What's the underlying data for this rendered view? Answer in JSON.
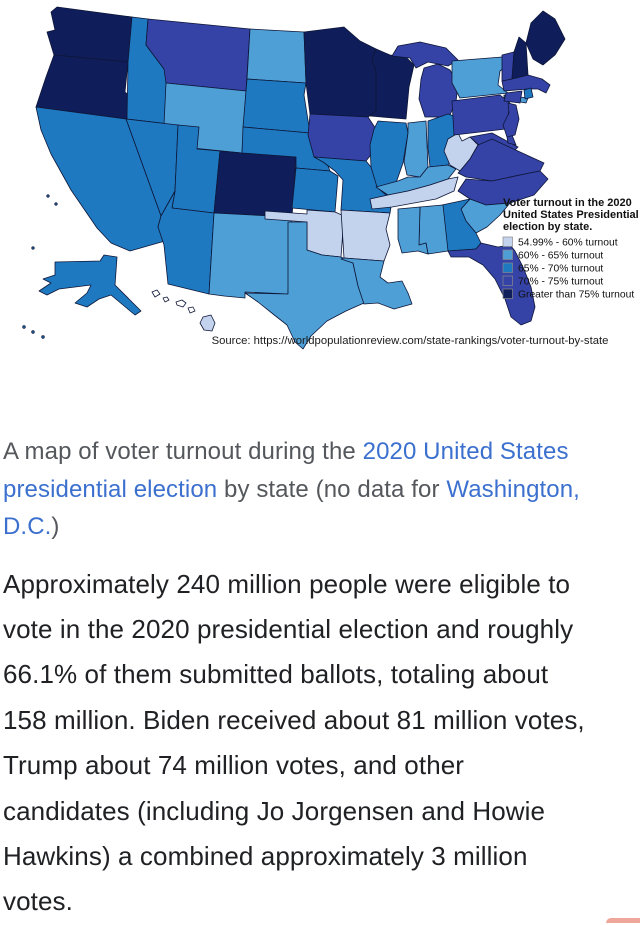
{
  "figure": {
    "legend": {
      "title_lines": [
        "Voter turnout in the 2020",
        "United States Presidential",
        "election by state."
      ],
      "item_labels": [
        "54.99% - 60% turnout",
        "60% - 65% turnout",
        "65% - 70% turnout",
        "70% - 75% turnout",
        "Greater than 75% turnout"
      ]
    },
    "source_line": "Source: https://worldpopulationreview.com/state-rankings/voter-turnout-by-state"
  },
  "chart_data": {
    "type": "choropleth",
    "title": "Voter turnout in the 2020 United States Presidential election by state.",
    "source": "https://worldpopulationreview.com/state-rankings/voter-turnout-by-state",
    "bands": [
      "54.99% - 60% turnout",
      "60% - 65% turnout",
      "65% - 70% turnout",
      "70% - 75% turnout",
      "Greater than 75% turnout"
    ],
    "band_colors": [
      "#c3d3ee",
      "#4d9fd6",
      "#1e79c0",
      "#3542a6",
      "#0f1e5a"
    ],
    "no_data": [
      "Washington, D.C."
    ],
    "state_bands": {
      "AL": 1,
      "AK": 2,
      "AZ": 2,
      "AR": 0,
      "CA": 2,
      "CO": 4,
      "CT": 3,
      "DE": 3,
      "FL": 3,
      "GA": 2,
      "HI": 0,
      "ID": 2,
      "IL": 2,
      "IN": 1,
      "IA": 3,
      "KS": 2,
      "KY": 1,
      "LA": 1,
      "ME": 4,
      "MD": 3,
      "MA": 3,
      "MI": 3,
      "MN": 4,
      "MS": 1,
      "MO": 2,
      "MT": 3,
      "NE": 2,
      "NV": 2,
      "NH": 4,
      "NJ": 3,
      "NM": 1,
      "NY": 1,
      "NC": 3,
      "ND": 1,
      "OH": 2,
      "OK": 0,
      "OR": 4,
      "PA": 3,
      "RI": 2,
      "SC": 1,
      "SD": 2,
      "TN": 0,
      "TX": 1,
      "UT": 2,
      "VT": 3,
      "VA": 3,
      "WA": 4,
      "WV": 0,
      "WI": 4,
      "WY": 1
    }
  },
  "caption": {
    "segments": [
      {
        "t": "A map of voter turnout during the ",
        "link": false
      },
      {
        "t": "2020 United States",
        "link": true
      },
      {
        "br": true
      },
      {
        "t": "presidential election",
        "link": true
      },
      {
        "t": " by state (no data for ",
        "link": false
      },
      {
        "t": "Washington,",
        "link": true
      },
      {
        "br": true
      },
      {
        "t": "D.C.",
        "link": true
      },
      {
        "t": ")",
        "link": false
      }
    ]
  },
  "article": {
    "lines": [
      "Approximately 240 million people were eligible to",
      "vote in the 2020 presidential election and roughly",
      "66.1% of them submitted ballots, totaling about",
      "158 million. Biden received about 81 million votes,",
      "Trump about 74 million votes, and other",
      "candidates (including Jo Jorgensen and Howie",
      "Hawkins) a combined approximately 3 million",
      "votes."
    ]
  }
}
